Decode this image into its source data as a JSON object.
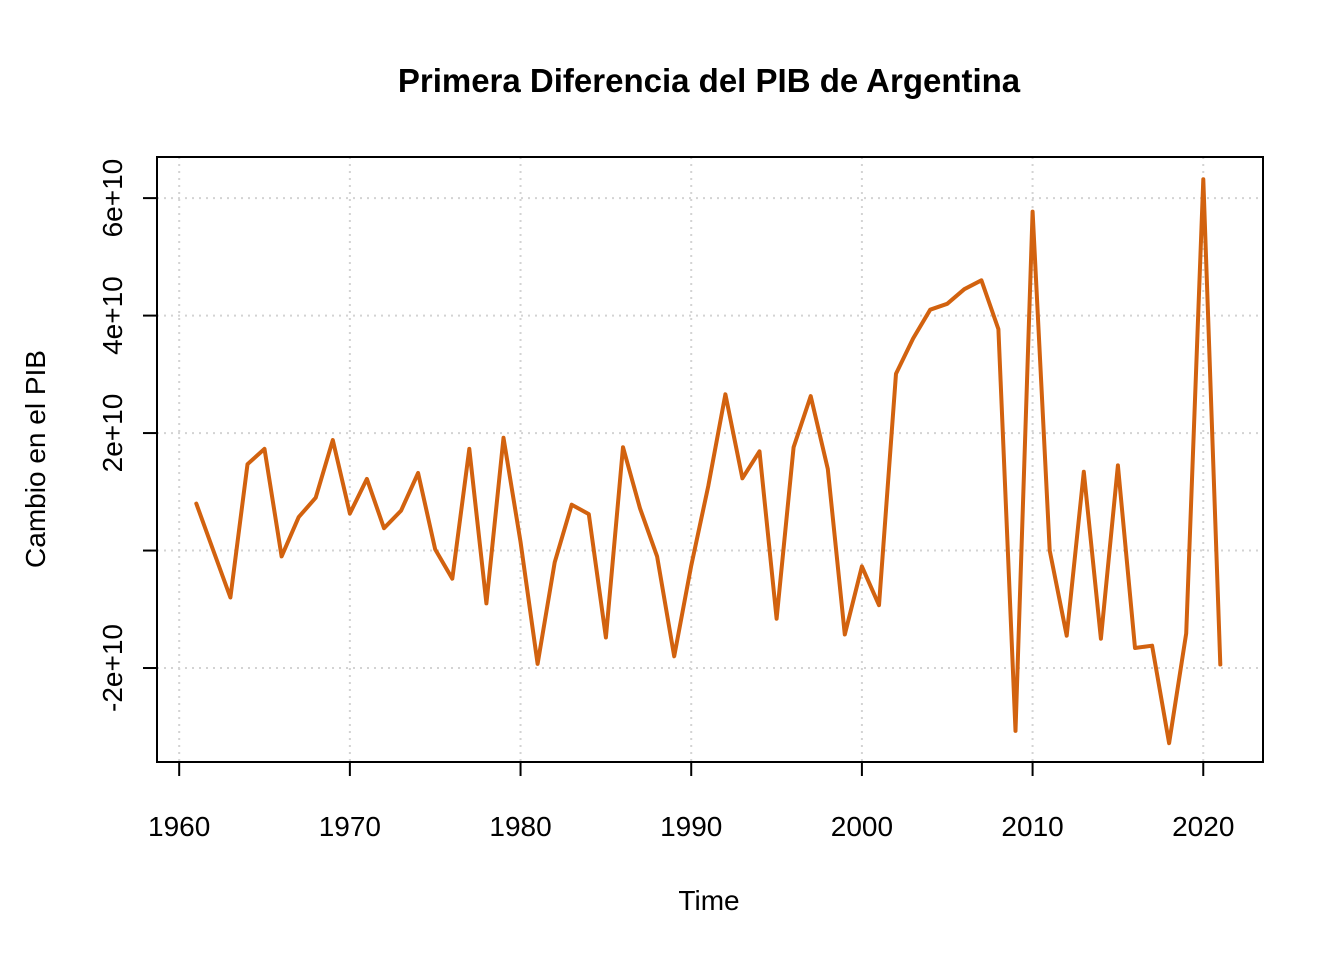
{
  "chart_data": {
    "type": "line",
    "title": "Primera Diferencia del PIB de Argentina",
    "xlabel": "Time",
    "ylabel": "Cambio en el PIB",
    "xlim": [
      1958.7,
      2023.5
    ],
    "ylim": [
      -36000000000,
      67000000000
    ],
    "x_ticks": [
      1960,
      1970,
      1980,
      1990,
      2000,
      2010,
      2020
    ],
    "x_tick_labels": [
      "1960",
      "1970",
      "1980",
      "1990",
      "2000",
      "2010",
      "2020"
    ],
    "y_ticks": [
      -20000000000,
      0,
      20000000000,
      40000000000,
      60000000000
    ],
    "y_tick_labels": [
      "-2e+10",
      "",
      "2e+10",
      "4e+10",
      "6e+10"
    ],
    "grid": true,
    "line_color": "#D2620F",
    "series": [
      {
        "x": [
          1961,
          1962,
          1963,
          1964,
          1965,
          1966,
          1967,
          1968,
          1969,
          1970,
          1971,
          1972,
          1973,
          1974,
          1975,
          1976,
          1977,
          1978,
          1979,
          1980,
          1981,
          1982,
          1983,
          1984,
          1985,
          1986,
          1987,
          1988,
          1989,
          1990,
          1991,
          1992,
          1993,
          1994,
          1995,
          1996,
          1997,
          1998,
          1999,
          2000,
          2001,
          2002,
          2003,
          2004,
          2005,
          2006,
          2007,
          2008,
          2009,
          2010,
          2011,
          2012,
          2013,
          2014,
          2015,
          2016,
          2017,
          2018,
          2019,
          2020,
          2021
        ],
        "values": [
          8000000000,
          0,
          -8000000000,
          14700000000,
          17300000000,
          -1000000000,
          5700000000,
          9000000000,
          18800000000,
          6300000000,
          12200000000,
          3800000000,
          6800000000,
          13200000000,
          200000000,
          -4800000000,
          17300000000,
          -9000000000,
          19200000000,
          1500000000,
          -19300000000,
          -2000000000,
          7800000000,
          6200000000,
          -14800000000,
          17600000000,
          7200000000,
          -1000000000,
          -18000000000,
          -2600000000,
          11000000000,
          26600000000,
          12300000000,
          16900000000,
          -11600000000,
          17600000000,
          26300000000,
          13900000000,
          -14300000000,
          -2700000000,
          -9300000000,
          30100000000,
          36100000000,
          41000000000,
          42000000000,
          44500000000,
          46000000000,
          37700000000,
          -30700000000,
          57700000000,
          0,
          -14500000000,
          13400000000,
          -15000000000,
          14500000000,
          -16600000000,
          -16200000000,
          -32800000000,
          -14100000000,
          63200000000,
          -19400000000
        ]
      }
    ]
  }
}
